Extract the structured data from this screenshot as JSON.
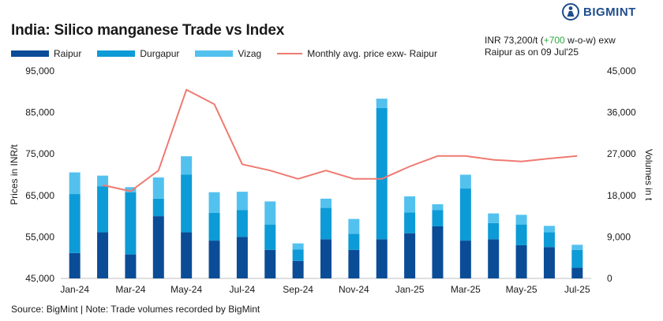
{
  "title": "India: Silico manganese Trade vs Index",
  "brand": {
    "name": "BIGMINT",
    "icon": "person-globe-icon",
    "color": "#1f4e8c"
  },
  "note": {
    "line1_prefix": "INR 73,200/t (",
    "change": "+700",
    "line1_suffix": " w-o-w) exw",
    "line2": "Raipur as on 09 Jul'25"
  },
  "source": "Source: BigMint | Note: Trade volumes recorded by BigMint",
  "colors": {
    "raipur": "#0b4c97",
    "durgapur": "#0c9bd6",
    "vizag": "#53c1ee",
    "price": "#ef7a72",
    "up": "#2eaa3f"
  },
  "chart_data": {
    "type": "bar",
    "stacked": true,
    "categories": [
      "Jan-24",
      "Feb-24",
      "Mar-24",
      "Apr-24",
      "May-24",
      "Jun-24",
      "Jul-24",
      "Aug-24",
      "Sep-24",
      "Oct-24",
      "Nov-24",
      "Dec-24",
      "Jan-25",
      "Feb-25",
      "Mar-25",
      "Apr-25",
      "May-25",
      "Jun-25",
      "Jul-25"
    ],
    "x_tick_labels": [
      "Jan-24",
      "",
      "Mar-24",
      "",
      "May-24",
      "",
      "Jul-24",
      "",
      "Sep-24",
      "",
      "Nov-24",
      "",
      "Jan-25",
      "",
      "Mar-25",
      "",
      "May-25",
      "",
      "Jul-25"
    ],
    "series": [
      {
        "name": "Raipur",
        "axis": "right",
        "values": [
          5500,
          10000,
          5200,
          13500,
          10000,
          8200,
          9000,
          6200,
          3800,
          8500,
          6200,
          8500,
          9800,
          11300,
          8200,
          8500,
          7200,
          6800,
          2300
        ]
      },
      {
        "name": "Durgapur",
        "axis": "right",
        "values": [
          12800,
          10000,
          13500,
          3800,
          12500,
          6000,
          5800,
          5500,
          2500,
          6800,
          3500,
          28500,
          4500,
          3500,
          11300,
          3500,
          4500,
          3200,
          3900
        ]
      },
      {
        "name": "Vizag",
        "axis": "right",
        "values": [
          4700,
          2300,
          1100,
          4600,
          4000,
          4500,
          4000,
          5000,
          1300,
          2000,
          3200,
          2000,
          3500,
          1300,
          3000,
          2100,
          2100,
          1400,
          1100
        ]
      },
      {
        "name": "Monthly avg. price exw- Raipur",
        "type": "line",
        "axis": "left",
        "values": [
          null,
          67500,
          66000,
          71000,
          90500,
          87000,
          72500,
          71000,
          69000,
          71000,
          69000,
          69000,
          72000,
          74500,
          74500,
          73600,
          73200,
          73900,
          74500
        ]
      }
    ],
    "ylabel": "Prices in INR/t",
    "ylabel_right": "Volumes in t",
    "ylim": [
      45000,
      95000
    ],
    "yticks": [
      45000,
      55000,
      65000,
      75000,
      85000,
      95000
    ],
    "ytick_labels": [
      "45,000",
      "55,000",
      "65,000",
      "75,000",
      "85,000",
      "95,000"
    ],
    "ylim_right": [
      0,
      45000
    ],
    "yticks_right": [
      0,
      9000,
      18000,
      27000,
      36000,
      45000
    ],
    "ytick_labels_right": [
      "0",
      "9,000",
      "18,000",
      "27,000",
      "36,000",
      "45,000"
    ],
    "grid": false,
    "legend": "top-left"
  }
}
